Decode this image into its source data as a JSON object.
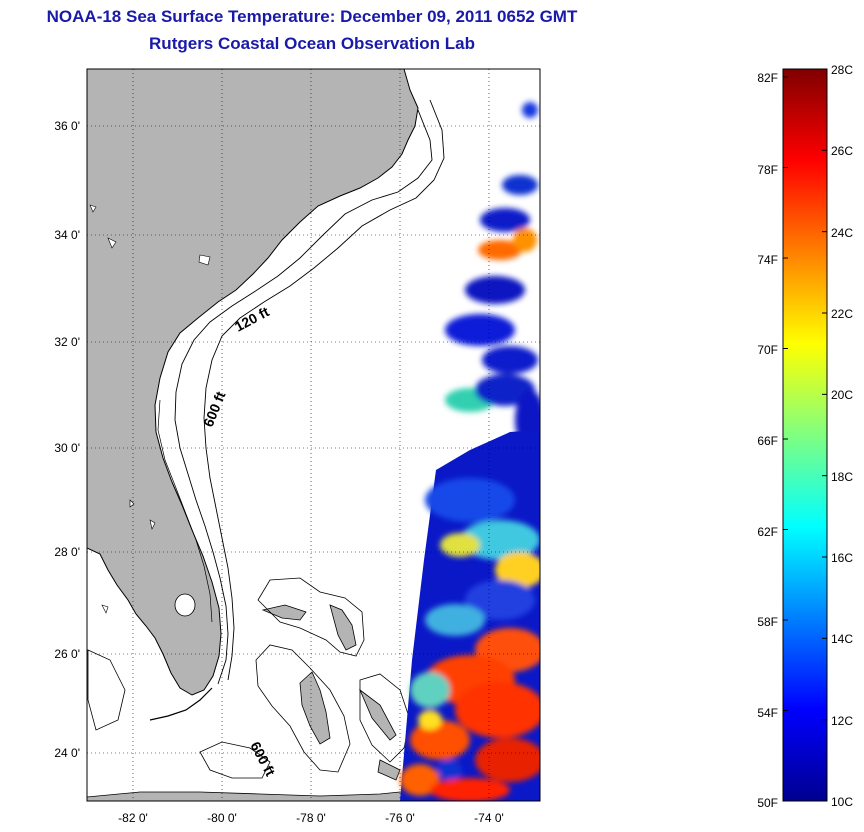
{
  "header": {
    "title": "NOAA-18 Sea Surface Temperature:  December 09, 2011 0652 GMT",
    "subtitle": "Rutgers Coastal Ocean Observation Lab"
  },
  "map": {
    "lat_ticks": [
      "36 0'",
      "34 0'",
      "32 0'",
      "30 0'",
      "28 0'",
      "26 0'",
      "24 0'"
    ],
    "lon_ticks": [
      "-82 0'",
      "-80 0'",
      "-78 0'",
      "-76 0'",
      "-74 0'"
    ],
    "contour_labels": [
      "120 ft",
      "600 ft",
      "600 ft"
    ],
    "colors": {
      "land": "#b4b4b4",
      "ocean": "#ffffff",
      "grid": "#000000"
    }
  },
  "colorbar": {
    "fahrenheit_labels": [
      "82F",
      "78F",
      "74F",
      "70F",
      "66F",
      "62F",
      "58F",
      "54F",
      "50F"
    ],
    "celsius_labels": [
      "28C",
      "26C",
      "24C",
      "22C",
      "20C",
      "18C",
      "16C",
      "14C",
      "12C",
      "10C"
    ],
    "colormap": "jet",
    "range_c": [
      10,
      28
    ]
  }
}
